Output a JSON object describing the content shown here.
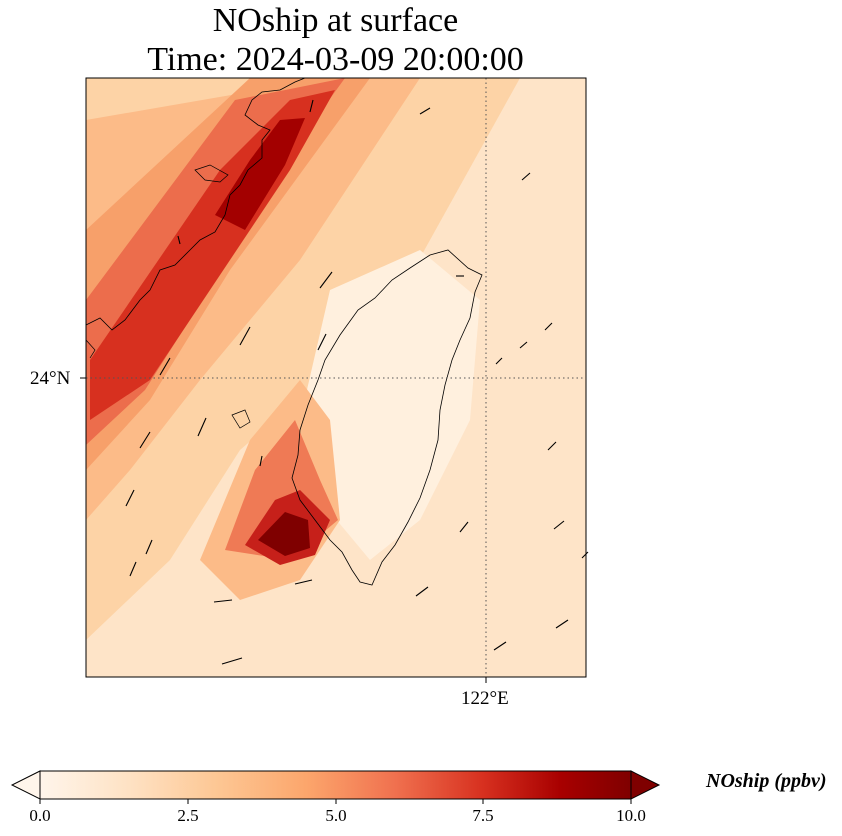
{
  "title": {
    "line1": "NOship at surface",
    "line2": "Time: 2024-03-09 20:00:00"
  },
  "axes": {
    "lat_tick_label": "24°N",
    "lon_tick_label": "122°E"
  },
  "colorbar": {
    "label": "NOship (ppbv)",
    "ticks": [
      "0.0",
      "2.5",
      "5.0",
      "7.5",
      "10.0"
    ],
    "range": [
      0,
      10
    ],
    "extend": "both",
    "colormap": [
      "#fff5eb",
      "#fdd9b4",
      "#fdb97f",
      "#f59a63",
      "#ea5f46",
      "#d7301f",
      "#a30000",
      "#7f0000"
    ]
  },
  "chart_data": {
    "type": "heatmap",
    "title": "NOship at surface\nTime: 2024-03-09 20:00:00",
    "variable": "NOship",
    "units": "ppbv",
    "value_range": [
      0,
      10
    ],
    "gridlines": [
      "24°N",
      "122°E"
    ],
    "features": [
      {
        "name": "coastal shipping band",
        "peak_value": 10.0
      },
      {
        "name": "hotspot off southwest coast",
        "peak_value": 10.0
      }
    ],
    "wind_vectors": true,
    "coastlines": true
  }
}
